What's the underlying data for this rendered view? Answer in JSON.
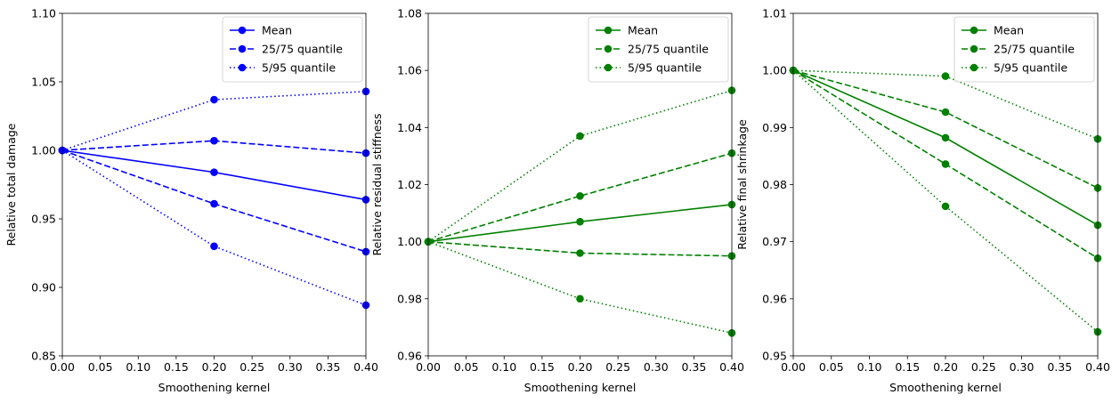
{
  "chart_data": [
    {
      "type": "line",
      "xlabel": "Smoothening kernel",
      "ylabel": "Relative total damage",
      "xlim": [
        0,
        0.4
      ],
      "ylim": [
        0.85,
        1.1
      ],
      "xticks": [
        "0.00",
        "0.05",
        "0.10",
        "0.15",
        "0.20",
        "0.25",
        "0.30",
        "0.35",
        "0.40"
      ],
      "yticks": [
        "0.85",
        "0.90",
        "0.95",
        "1.00",
        "1.05",
        "1.10"
      ],
      "color": "#0000ff",
      "legend_position": "top-right",
      "grid": false,
      "x": [
        0.0,
        0.2,
        0.4
      ],
      "series": [
        {
          "name": "Mean",
          "style": "solid",
          "values": [
            1.0,
            0.984,
            0.964
          ]
        },
        {
          "name": "25/75 quantile",
          "style": "dashed",
          "values": [
            1.0,
            1.007,
            0.998
          ]
        },
        {
          "name": "",
          "style": "dashed",
          "values": [
            1.0,
            0.961,
            0.926
          ]
        },
        {
          "name": "5/95 quantile",
          "style": "dotted",
          "values": [
            1.0,
            1.037,
            1.043
          ]
        },
        {
          "name": "",
          "style": "dotted",
          "values": [
            1.0,
            0.93,
            0.887
          ]
        }
      ]
    },
    {
      "type": "line",
      "xlabel": "Smoothening kernel",
      "ylabel": "Relative residual stiffness",
      "xlim": [
        0,
        0.4
      ],
      "ylim": [
        0.96,
        1.08
      ],
      "xticks": [
        "0.00",
        "0.05",
        "0.10",
        "0.15",
        "0.20",
        "0.25",
        "0.30",
        "0.35",
        "0.40"
      ],
      "yticks": [
        "0.96",
        "0.98",
        "1.00",
        "1.02",
        "1.04",
        "1.06",
        "1.08"
      ],
      "color": "#008000",
      "legend_position": "top-right",
      "grid": false,
      "x": [
        0.0,
        0.2,
        0.4
      ],
      "series": [
        {
          "name": "Mean",
          "style": "solid",
          "values": [
            1.0,
            1.007,
            1.013
          ]
        },
        {
          "name": "25/75 quantile",
          "style": "dashed",
          "values": [
            1.0,
            1.016,
            1.031
          ]
        },
        {
          "name": "",
          "style": "dashed",
          "values": [
            1.0,
            0.996,
            0.995
          ]
        },
        {
          "name": "5/95 quantile",
          "style": "dotted",
          "values": [
            1.0,
            1.037,
            1.053
          ]
        },
        {
          "name": "",
          "style": "dotted",
          "values": [
            1.0,
            0.98,
            0.968
          ]
        }
      ]
    },
    {
      "type": "line",
      "xlabel": "Smoothening kernel",
      "ylabel": "Relative final shrinkage",
      "xlim": [
        0,
        0.4
      ],
      "ylim": [
        0.95,
        1.01
      ],
      "xticks": [
        "0.00",
        "0.05",
        "0.10",
        "0.15",
        "0.20",
        "0.25",
        "0.30",
        "0.35",
        "0.40"
      ],
      "yticks": [
        "0.95",
        "0.96",
        "0.97",
        "0.98",
        "0.99",
        "1.00",
        "1.01"
      ],
      "color": "#008000",
      "legend_position": "top-right",
      "grid": false,
      "x": [
        0.0,
        0.2,
        0.4
      ],
      "series": [
        {
          "name": "Mean",
          "style": "solid",
          "values": [
            1.0,
            0.9882,
            0.9729
          ]
        },
        {
          "name": "25/75 quantile",
          "style": "dashed",
          "values": [
            1.0,
            0.9927,
            0.9794
          ]
        },
        {
          "name": "",
          "style": "dashed",
          "values": [
            1.0,
            0.9836,
            0.9671
          ]
        },
        {
          "name": "5/95 quantile",
          "style": "dotted",
          "values": [
            1.0,
            0.999,
            0.988
          ]
        },
        {
          "name": "",
          "style": "dotted",
          "values": [
            1.0,
            0.9762,
            0.9542
          ]
        }
      ]
    }
  ]
}
